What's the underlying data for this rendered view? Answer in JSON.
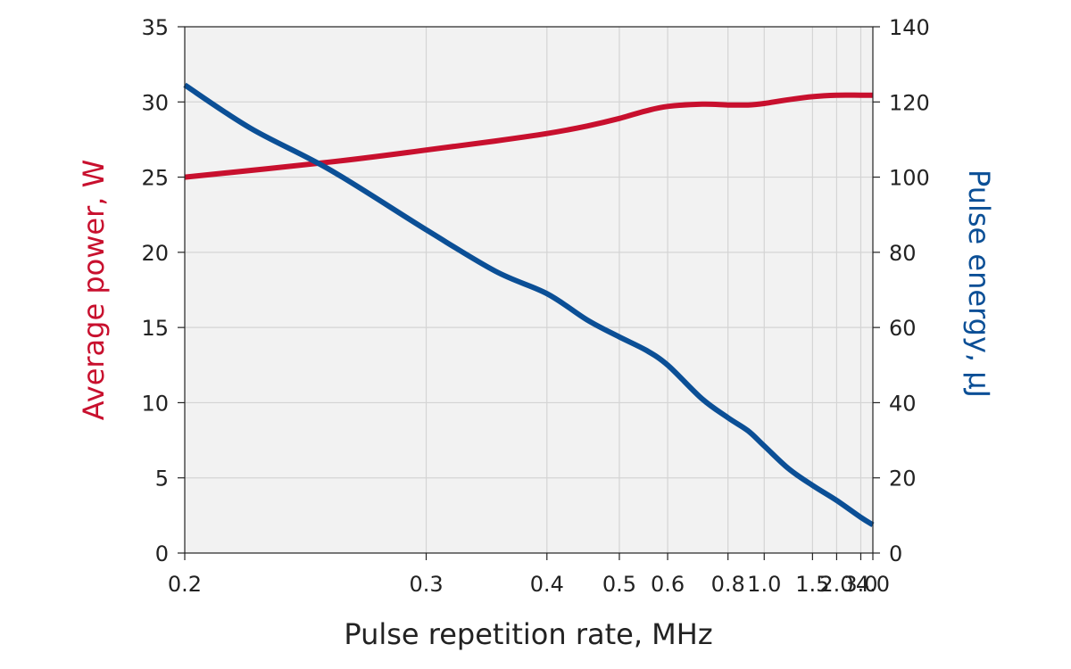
{
  "chart_data": {
    "type": "line",
    "xlabel": "Pulse repetition rate, MHz",
    "ylabel_left": "Average power, W",
    "ylabel_right": "Pulse energy, μJ",
    "x_scale": "reciprocal",
    "x_ticks": [
      0.2,
      0.3,
      0.4,
      0.5,
      0.6,
      0.8,
      1.0,
      1.5,
      2.0,
      3.0,
      4.0
    ],
    "x_tick_labels": [
      "0.2",
      "0.3",
      "0.4",
      "0.5",
      "0.6",
      "0.8",
      "1.0",
      "1.5",
      "2.0",
      "3.0",
      "4.0"
    ],
    "ylim_left": [
      0,
      35
    ],
    "y_ticks_left": [
      0,
      5,
      10,
      15,
      20,
      25,
      30,
      35
    ],
    "ylim_right": [
      0,
      140
    ],
    "y_ticks_right": [
      0,
      20,
      40,
      60,
      80,
      100,
      120,
      140
    ],
    "grid": true,
    "series": [
      {
        "axis": "left",
        "color": "#c8102e",
        "x": [
          0.2,
          0.25,
          0.3,
          0.35,
          0.4,
          0.45,
          0.5,
          0.55,
          0.6,
          0.7,
          0.8,
          0.9,
          1.0,
          1.2,
          1.5,
          2.0,
          3.0,
          4.0
        ],
        "y": [
          25.0,
          26.0,
          26.8,
          27.4,
          27.9,
          28.4,
          28.9,
          29.4,
          29.7,
          29.85,
          29.8,
          29.8,
          29.9,
          30.15,
          30.35,
          30.45,
          30.45,
          30.45
        ]
      },
      {
        "axis": "right",
        "color": "#0b4f96",
        "x": [
          0.2,
          0.22,
          0.25,
          0.3,
          0.35,
          0.4,
          0.45,
          0.5,
          0.55,
          0.6,
          0.7,
          0.8,
          0.9,
          1.0,
          1.2,
          1.5,
          2.0,
          3.0,
          4.0
        ],
        "y": [
          124.5,
          113,
          102,
          86,
          75,
          69,
          62,
          57.5,
          54,
          50,
          41,
          36,
          32.5,
          28.5,
          22.5,
          18,
          14,
          9.5,
          7.5
        ]
      }
    ]
  },
  "colors": {
    "plot_background": "#f2f2f2",
    "gridline": "#d4d4d4",
    "power_axis": "#c8102e",
    "energy_axis": "#0b4f96"
  }
}
